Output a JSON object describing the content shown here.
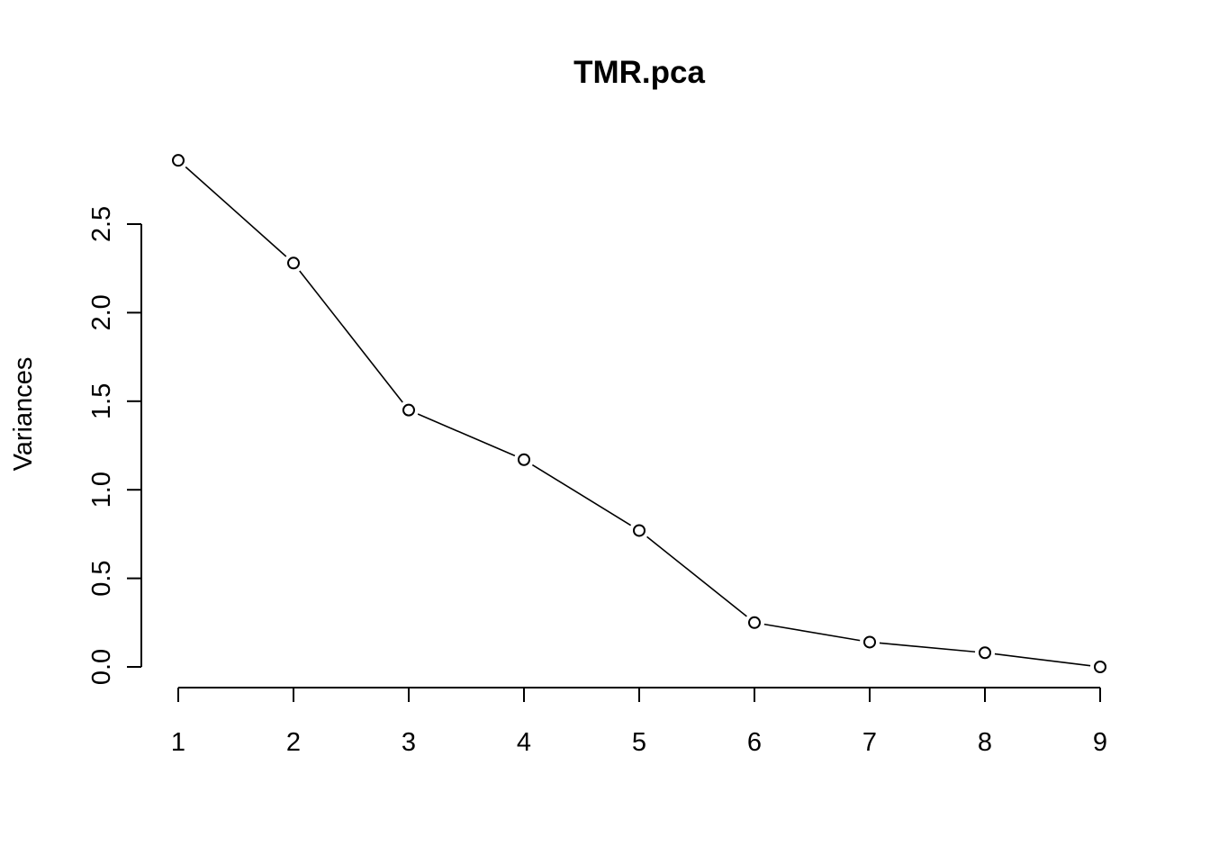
{
  "chart_data": {
    "type": "line",
    "title": "TMR.pca",
    "xlabel": "",
    "ylabel": "Variances",
    "categories": [
      "1",
      "2",
      "3",
      "4",
      "5",
      "6",
      "7",
      "8",
      "9"
    ],
    "values": [
      2.86,
      2.28,
      1.45,
      1.17,
      0.77,
      0.25,
      0.14,
      0.08,
      0.0
    ],
    "yticks": [
      0.0,
      0.5,
      1.0,
      1.5,
      2.0,
      2.5
    ],
    "ytick_labels": [
      "0.0",
      "0.5",
      "1.0",
      "1.5",
      "2.0",
      "2.5"
    ],
    "ylim": [
      0.0,
      2.86
    ],
    "grid": false,
    "marker": "open-circle",
    "line_color": "#000000"
  }
}
